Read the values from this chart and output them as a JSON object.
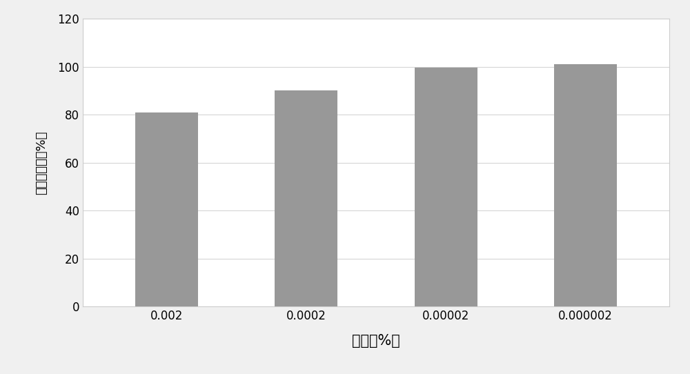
{
  "categories": [
    "0.002",
    "0.0002",
    "0.00002",
    "0.000002"
  ],
  "values": [
    81,
    90,
    99.5,
    101
  ],
  "bar_color": "#989898",
  "bar_width": 0.45,
  "xlabel": "浓度（%）",
  "ylabel": "细胞存活率（%）",
  "ylim": [
    0,
    120
  ],
  "yticks": [
    0,
    20,
    40,
    60,
    80,
    100,
    120
  ],
  "background_color": "#f5f5f5",
  "plot_bg_color": "#ffffff",
  "outer_bg_color": "#f0f0f0",
  "xlabel_fontsize": 15,
  "ylabel_fontsize": 13,
  "tick_fontsize": 12,
  "grid_color": "#d0d0d0",
  "spine_color": "#cccccc"
}
